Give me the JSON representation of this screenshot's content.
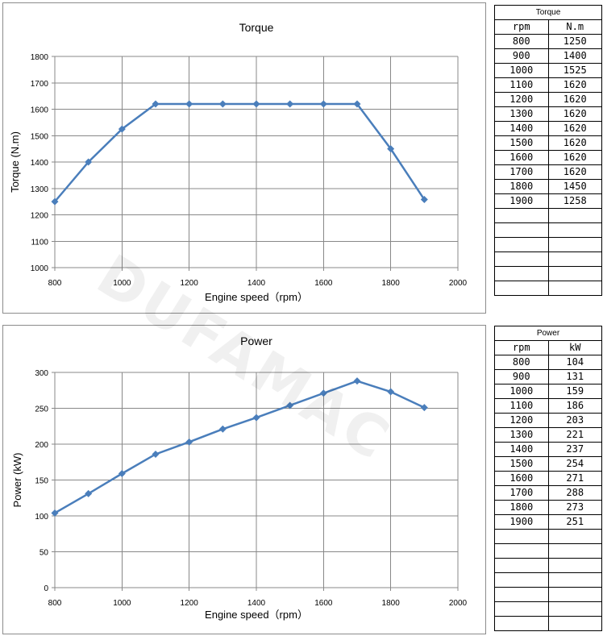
{
  "chart_data": [
    {
      "type": "line",
      "title": "Torque",
      "xlabel": "Engine speed（rpm）",
      "ylabel": "Torque (N.m)",
      "xlim": [
        800,
        2000
      ],
      "ylim": [
        1000,
        1800
      ],
      "xticks": [
        800,
        1000,
        1200,
        1400,
        1600,
        1800,
        2000
      ],
      "yticks": [
        1000,
        1100,
        1200,
        1300,
        1400,
        1500,
        1600,
        1700,
        1800
      ],
      "grid": "vertical and horizontal",
      "legend": "none",
      "color": "#4a7ebb",
      "x": [
        800,
        900,
        1000,
        1100,
        1200,
        1300,
        1400,
        1500,
        1600,
        1700,
        1800,
        1900
      ],
      "y": [
        1250,
        1400,
        1525,
        1620,
        1620,
        1620,
        1620,
        1620,
        1620,
        1620,
        1450,
        1258
      ]
    },
    {
      "type": "line",
      "title": "Power",
      "xlabel": "Engine speed（rpm）",
      "ylabel": "Power (kW)",
      "xlim": [
        800,
        2000
      ],
      "ylim": [
        0,
        300
      ],
      "xticks": [
        800,
        1000,
        1200,
        1400,
        1600,
        1800,
        2000
      ],
      "yticks": [
        0,
        50,
        100,
        150,
        200,
        250,
        300
      ],
      "grid": "vertical and horizontal",
      "legend": "none",
      "color": "#4a7ebb",
      "x": [
        800,
        900,
        1000,
        1100,
        1200,
        1300,
        1400,
        1500,
        1600,
        1700,
        1800,
        1900
      ],
      "y": [
        104,
        131,
        159,
        186,
        203,
        221,
        237,
        254,
        271,
        288,
        273,
        251
      ]
    }
  ],
  "tables": {
    "torque": {
      "title": "Torque",
      "headers": [
        "rpm",
        "N.m"
      ],
      "rows": [
        [
          "800",
          "1250"
        ],
        [
          "900",
          "1400"
        ],
        [
          "1000",
          "1525"
        ],
        [
          "1100",
          "1620"
        ],
        [
          "1200",
          "1620"
        ],
        [
          "1300",
          "1620"
        ],
        [
          "1400",
          "1620"
        ],
        [
          "1500",
          "1620"
        ],
        [
          "1600",
          "1620"
        ],
        [
          "1700",
          "1620"
        ],
        [
          "1800",
          "1450"
        ],
        [
          "1900",
          "1258"
        ],
        [
          "",
          ""
        ],
        [
          "",
          ""
        ],
        [
          "",
          ""
        ],
        [
          "",
          ""
        ],
        [
          "",
          ""
        ],
        [
          "",
          ""
        ]
      ]
    },
    "power": {
      "title": "Power",
      "headers": [
        "rpm",
        "kW"
      ],
      "rows": [
        [
          "800",
          "104"
        ],
        [
          "900",
          "131"
        ],
        [
          "1000",
          "159"
        ],
        [
          "1100",
          "186"
        ],
        [
          "1200",
          "203"
        ],
        [
          "1300",
          "221"
        ],
        [
          "1400",
          "237"
        ],
        [
          "1500",
          "254"
        ],
        [
          "1600",
          "271"
        ],
        [
          "1700",
          "288"
        ],
        [
          "1800",
          "273"
        ],
        [
          "1900",
          "251"
        ],
        [
          "",
          ""
        ],
        [
          "",
          ""
        ],
        [
          "",
          ""
        ],
        [
          "",
          ""
        ],
        [
          "",
          ""
        ],
        [
          "",
          ""
        ],
        [
          "",
          ""
        ]
      ]
    }
  },
  "watermark": "DUFAMAC"
}
